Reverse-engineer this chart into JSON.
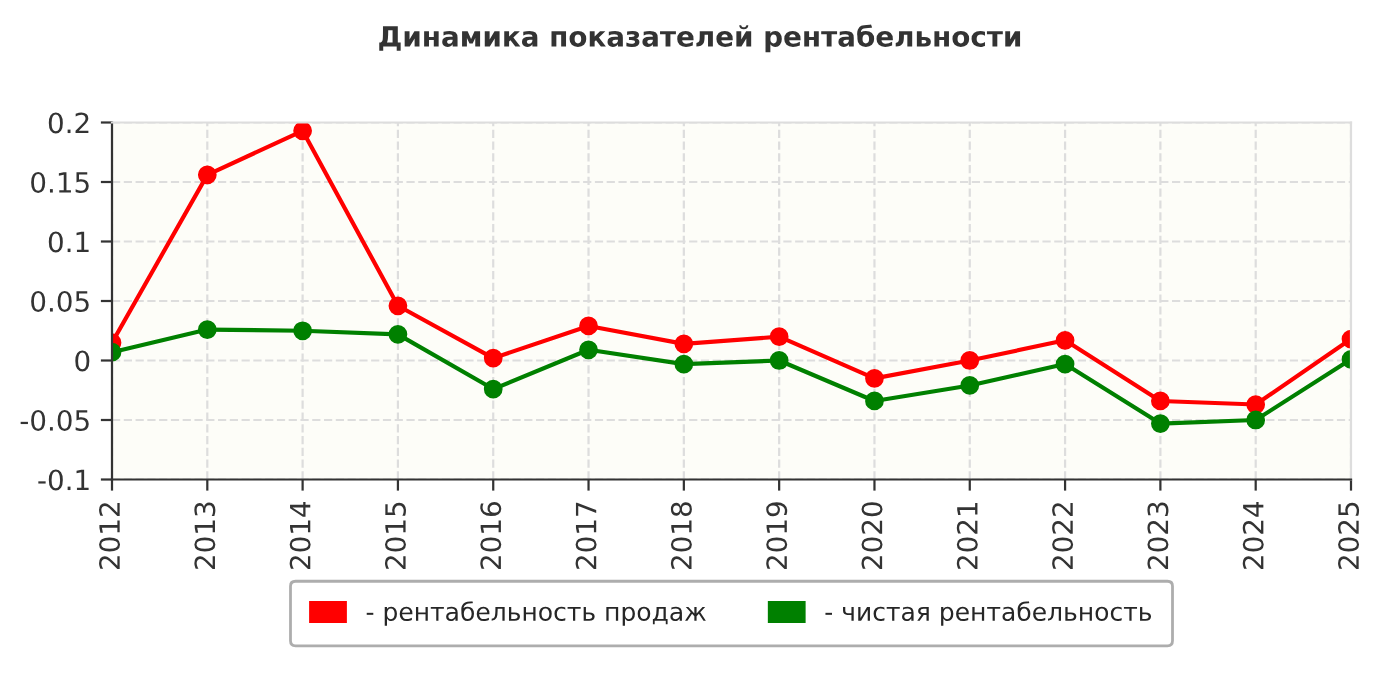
{
  "chart_data": {
    "type": "line",
    "title": "Динамика показателей рентабельности",
    "categories": [
      "2012",
      "2013",
      "2014",
      "2015",
      "2016",
      "2017",
      "2018",
      "2019",
      "2020",
      "2021",
      "2022",
      "2023",
      "2024",
      "2025"
    ],
    "series": [
      {
        "name": "- рентабельность продаж",
        "color": "#ff0000",
        "values": [
          0.015,
          0.156,
          0.193,
          0.046,
          0.002,
          0.029,
          0.014,
          0.02,
          -0.015,
          0.0,
          0.017,
          -0.034,
          -0.037,
          0.018
        ]
      },
      {
        "name": "- чистая рентабельность",
        "color": "#008000",
        "values": [
          0.007,
          0.026,
          0.025,
          0.022,
          -0.024,
          0.009,
          -0.003,
          0.0,
          -0.034,
          -0.021,
          -0.003,
          -0.053,
          -0.05,
          0.001
        ]
      }
    ],
    "ylim": [
      -0.1,
      0.2
    ],
    "yticks": [
      -0.1,
      -0.05,
      0,
      0.05,
      0.1,
      0.15,
      0.2
    ],
    "grid": true,
    "legend": "bottom",
    "marker": "circle",
    "line_style": "solid"
  }
}
